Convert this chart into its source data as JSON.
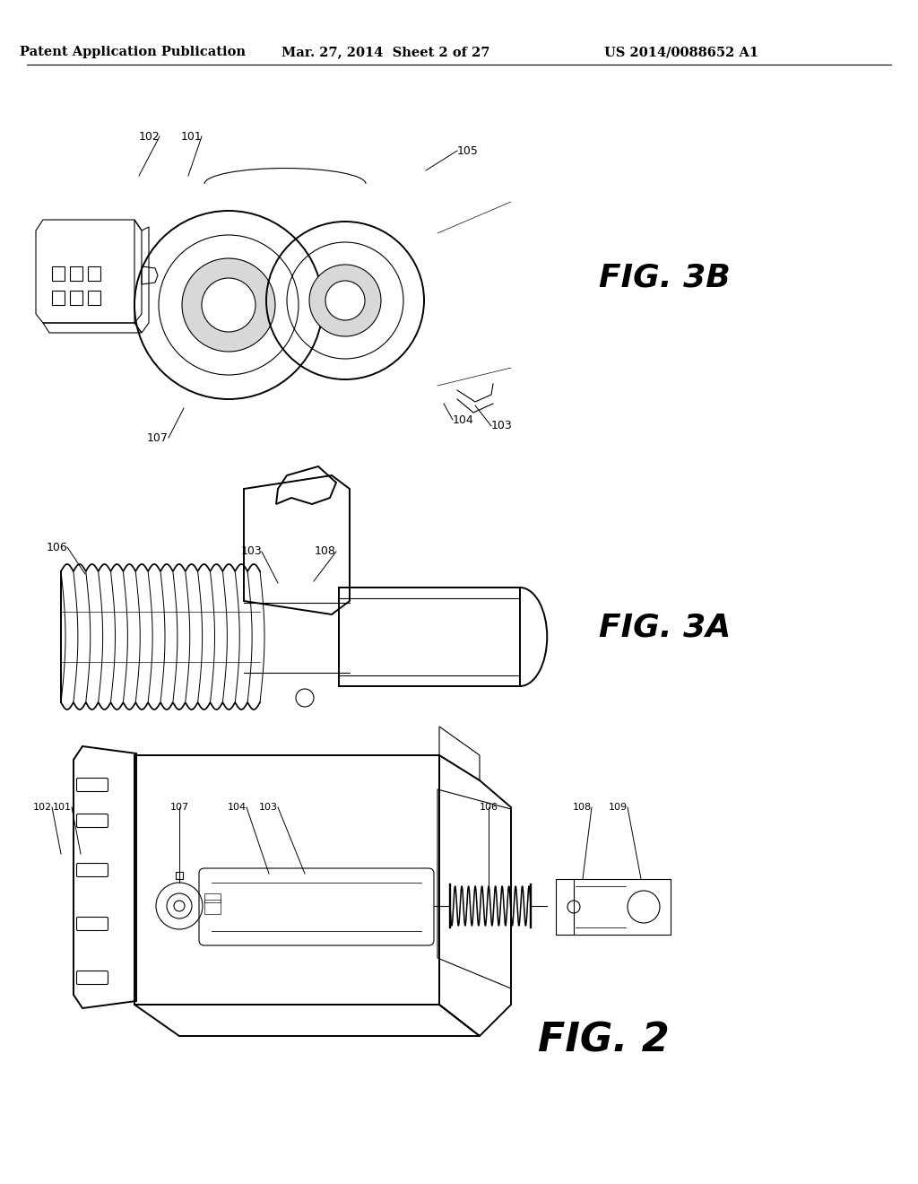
{
  "background_color": "#ffffff",
  "header_left": "Patent Application Publication",
  "header_center": "Mar. 27, 2014  Sheet 2 of 27",
  "header_right": "US 2014/0088652 A1",
  "header_fontsize": 10.5,
  "fig_label_3B": "FIG. 3B",
  "fig_label_3A": "FIG. 3A",
  "fig_label_2": "FIG. 2",
  "fig_fontsize": 26,
  "line_color": "#000000",
  "lw": 1.4,
  "tlw": 0.8,
  "label_fs": 9
}
